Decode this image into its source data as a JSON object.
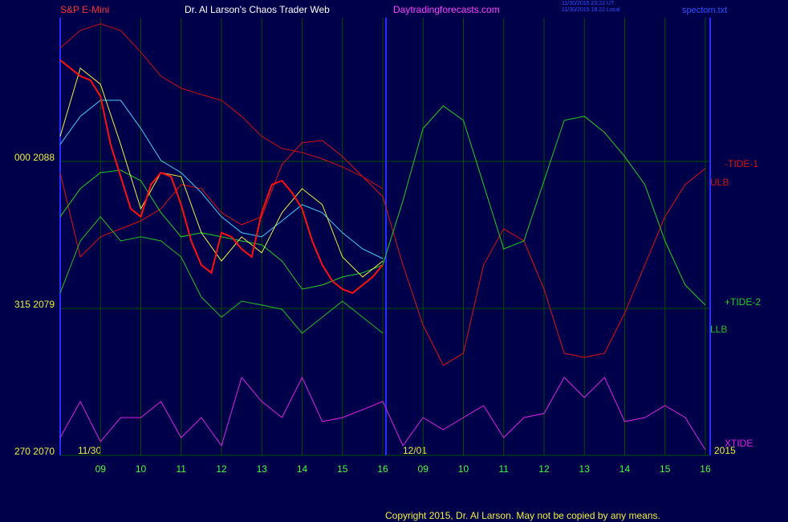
{
  "chart_data": {
    "type": "line",
    "symbol": "S&P E-Mini",
    "title": "Dr. Al Larson's Chaos Trader Web",
    "site": "Daytradingforecasts.com",
    "timestamps": [
      "11/30/2015 23:22 UT",
      "11/30/2015 18:22 Local"
    ],
    "file": "spectom.txt",
    "copyright": "Copyright 2015, Dr. Al Larson. May not be copied by any means.",
    "annotations": [
      "11/30",
      "12/01",
      "2015"
    ],
    "xlim": [
      0,
      16.06
    ],
    "ylim": [
      2070,
      2096.8
    ],
    "xticks": [
      {
        "value": 1,
        "label": "09"
      },
      {
        "value": 2,
        "label": "10"
      },
      {
        "value": 3,
        "label": "11"
      },
      {
        "value": 4,
        "label": "12"
      },
      {
        "value": 5,
        "label": "13"
      },
      {
        "value": 6,
        "label": "14"
      },
      {
        "value": 7,
        "label": "15"
      },
      {
        "value": 8,
        "label": "16"
      },
      {
        "value": 9,
        "label": "09"
      },
      {
        "value": 10,
        "label": "10"
      },
      {
        "value": 11,
        "label": "11"
      },
      {
        "value": 12,
        "label": "12"
      },
      {
        "value": 13,
        "label": "13"
      },
      {
        "value": 14,
        "label": "14"
      },
      {
        "value": 15,
        "label": "15"
      },
      {
        "value": 16,
        "label": "16"
      }
    ],
    "yticks": [
      {
        "value": 2088,
        "label": "000  2088"
      },
      {
        "value": 2079,
        "label": "315  2079"
      },
      {
        "value": 2070,
        "label": "270  2070"
      }
    ],
    "grid": true,
    "x": [
      0,
      0.5,
      1,
      1.5,
      2,
      2.5,
      3,
      3.5,
      4,
      4.5,
      5,
      5.5,
      6,
      6.5,
      7,
      7.5,
      8,
      8.5,
      9,
      9.5,
      10,
      10.5,
      11,
      11.5,
      12,
      12.5,
      13,
      13.5,
      14,
      14.5,
      15,
      15.5,
      16
    ],
    "series": [
      {
        "name": "-TIDE-1",
        "color": "#e01010",
        "values": [
          2087.31,
          2082.15,
          2083.38,
          2083.87,
          2084.36,
          2085.1,
          2086.58,
          2086.33,
          2084.86,
          2084.12,
          2084.61,
          2087.81,
          2089.14,
          2089.28,
          2088.3,
          2087.07,
          2085.84,
          2081.66,
          2077.97,
          2075.51,
          2076.25,
          2081.66,
          2083.87,
          2083.13,
          2080.18,
          2076.25,
          2076.0,
          2076.25,
          2078.71,
          2081.66,
          2084.61,
          2086.58,
          2087.56
        ]
      },
      {
        "name": "ULB",
        "color": "#d01010",
        "values": [
          2094.94,
          2096.02,
          2096.42,
          2096.02,
          2094.69,
          2093.22,
          2092.48,
          2092.09,
          2091.74,
          2090.76,
          2089.53,
          2088.79,
          2088.55,
          2088.15,
          2087.66,
          2087.07,
          2086.33,
          null,
          null,
          null,
          null,
          null,
          null,
          null,
          null,
          null,
          null,
          null,
          null,
          null,
          null,
          null,
          null
        ]
      },
      {
        "name": "+TIDE-2",
        "color": "#20d020",
        "values": [
          2084.61,
          2086.33,
          2087.31,
          2087.46,
          2086.82,
          2084.86,
          2083.38,
          2083.63,
          2083.38,
          2083.13,
          2082.89,
          2081.9,
          2080.18,
          2080.43,
          2080.92,
          2081.17,
          2081.66,
          2085.59,
          2090.02,
          2091.4,
          2090.51,
          2086.58,
          2082.64,
          2083.13,
          2086.82,
          2090.51,
          2090.76,
          2089.77,
          2088.3,
          2086.58,
          2083.13,
          2080.43,
          2079.2
        ]
      },
      {
        "name": "LLB",
        "color": "#20c020",
        "values": [
          2079.94,
          2083.13,
          2084.61,
          2083.13,
          2083.38,
          2083.13,
          2082.15,
          2079.69,
          2078.46,
          2079.44,
          2079.2,
          2078.95,
          2077.48,
          2078.46,
          2079.44,
          2078.46,
          2077.48,
          null,
          null,
          null,
          null,
          null,
          null,
          null,
          null,
          null,
          null,
          null,
          null,
          null,
          null,
          null,
          null
        ]
      },
      {
        "name": "XTIDE",
        "color": "#e020e0",
        "values": [
          2071.08,
          2073.3,
          2070.84,
          2072.31,
          2072.31,
          2073.3,
          2071.08,
          2072.31,
          2070.59,
          2074.77,
          2073.3,
          2072.31,
          2074.77,
          2072.07,
          2072.31,
          2072.8,
          2073.3,
          2070.59,
          2072.31,
          2071.57,
          2072.31,
          2073.05,
          2071.08,
          2072.31,
          2072.56,
          2074.77,
          2073.54,
          2074.77,
          2072.07,
          2072.31,
          2073.05,
          2072.31,
          2070.34
        ]
      },
      {
        "color": "#40d0ff",
        "values": [
          2089.04,
          2090.76,
          2091.74,
          2091.74,
          2090.02,
          2088.05,
          2087.31,
          2086.09,
          2084.61,
          2083.63,
          2083.38,
          2084.36,
          2085.35,
          2084.86,
          2083.63,
          2082.64,
          2082.05,
          null,
          null,
          null,
          null,
          null,
          null,
          null,
          null,
          null,
          null,
          null,
          null,
          null,
          null,
          null,
          null
        ]
      },
      {
        "color": "#f0f040",
        "values": [
          2089.53,
          2093.71,
          2092.73,
          2089.04,
          2085.1,
          2087.31,
          2087.07,
          2083.63,
          2081.9,
          2083.38,
          2082.4,
          2084.86,
          2086.33,
          2085.35,
          2082.15,
          2080.92,
          2081.9,
          null,
          null,
          null,
          null,
          null,
          null,
          null,
          null,
          null,
          null,
          null,
          null,
          null,
          null,
          null,
          null
        ]
      }
    ],
    "price": {
      "color": "#ff1010",
      "x": [
        0,
        0.25,
        0.5,
        0.75,
        1,
        1.25,
        1.5,
        1.75,
        2,
        2.25,
        2.5,
        2.75,
        3,
        3.25,
        3.5,
        3.75,
        4,
        4.25,
        4.5,
        4.75,
        5,
        5.25,
        5.5,
        5.75,
        6,
        6.25,
        6.5,
        6.75,
        7,
        7.25,
        7.5,
        7.75,
        8
      ],
      "values": [
        2094.2,
        2093.71,
        2093.22,
        2092.97,
        2091.99,
        2089.04,
        2087.07,
        2085.1,
        2084.61,
        2086.58,
        2087.31,
        2087.07,
        2085.35,
        2083.13,
        2081.66,
        2081.17,
        2083.63,
        2083.38,
        2082.64,
        2082.15,
        2084.86,
        2086.58,
        2086.82,
        2086.09,
        2085.1,
        2083.13,
        2081.66,
        2080.67,
        2080.18,
        2079.94,
        2080.43,
        2080.92,
        2081.66
      ]
    }
  }
}
